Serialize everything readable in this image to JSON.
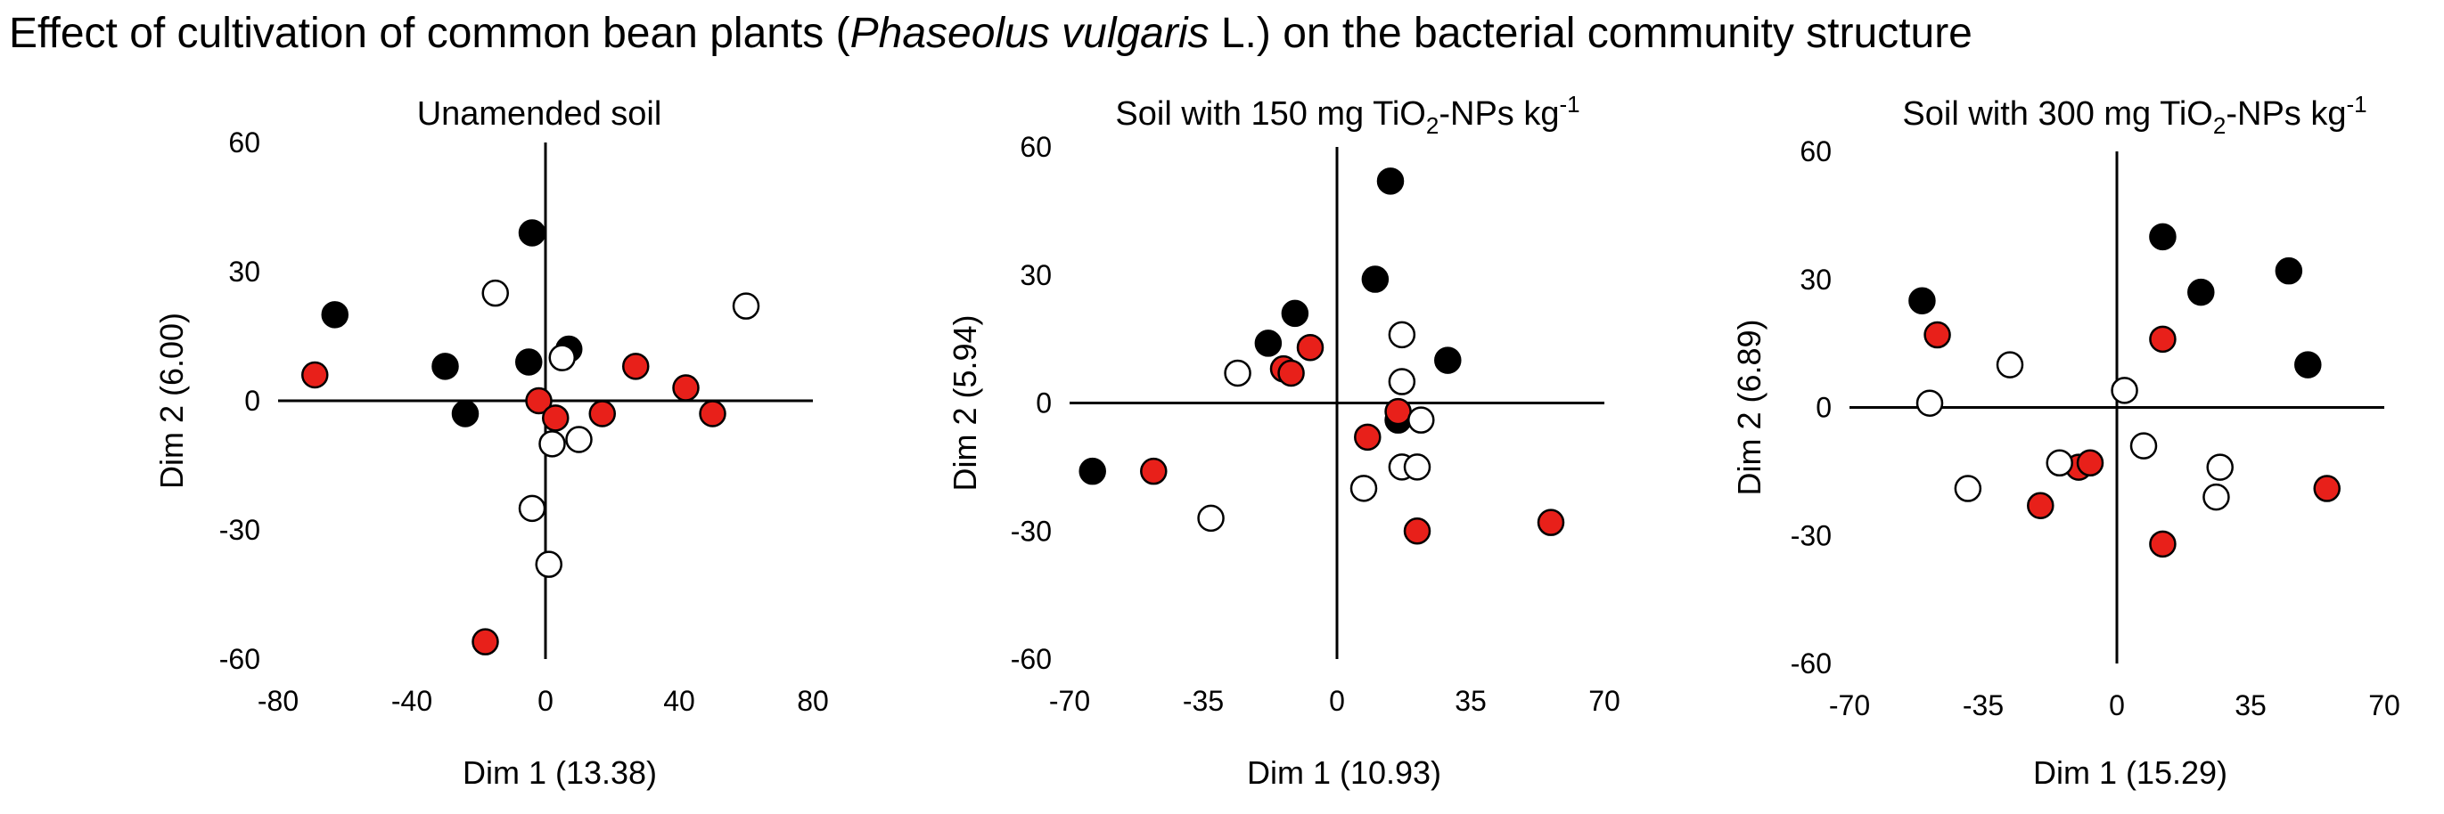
{
  "title": {
    "prefix": "Effect of cultivation of common bean plants (",
    "species": "Phaseolus vulgaris",
    "suffix": " L.) on the bacterial community structure"
  },
  "legend_colors": {
    "black": "#000000",
    "red": "#e8201a",
    "white": "#ffffff"
  },
  "chart_data": [
    {
      "type": "scatter",
      "title": "Unamended soil",
      "xlabel": "Dim 1 (13.38)",
      "ylabel": "Dim 2 (6.00)",
      "xlim": [
        -80,
        80
      ],
      "ylim": [
        -60,
        60
      ],
      "xticks": [
        -80,
        -40,
        0,
        40,
        80
      ],
      "yticks": [
        -60,
        -30,
        0,
        30,
        60
      ],
      "series": [
        {
          "name": "black",
          "color": "#000000",
          "x": [
            -63,
            -30,
            -24,
            -5,
            -4,
            7
          ],
          "y": [
            20,
            8,
            -3,
            9,
            39,
            12
          ]
        },
        {
          "name": "red",
          "color": "#e8201a",
          "x": [
            -69,
            -2,
            3,
            17,
            27,
            42,
            50,
            -18
          ],
          "y": [
            6,
            0,
            -4,
            -3,
            8,
            3,
            -3,
            -56
          ]
        },
        {
          "name": "white",
          "color": "#ffffff",
          "x": [
            -15,
            60,
            5,
            2,
            10,
            -4,
            1
          ],
          "y": [
            25,
            22,
            10,
            -10,
            -9,
            -25,
            -38
          ]
        }
      ]
    },
    {
      "type": "scatter",
      "title": "Soil with 150 mg TiO2-NPs kg-1",
      "title_parts": {
        "a": "Soil with 150 mg TiO",
        "sub": "2",
        "b": "-NPs kg",
        "sup": "-1"
      },
      "xlabel": "Dim 1 (10.93)",
      "ylabel": "Dim 2 (5.94)",
      "xlim": [
        -70,
        70
      ],
      "ylim": [
        -60,
        60
      ],
      "xticks": [
        -70,
        -35,
        0,
        35,
        70
      ],
      "yticks": [
        -60,
        -30,
        0,
        30,
        60
      ],
      "series": [
        {
          "name": "black",
          "color": "#000000",
          "x": [
            14,
            10,
            -11,
            -18,
            29,
            16,
            -64
          ],
          "y": [
            52,
            29,
            21,
            14,
            10,
            -4,
            -16
          ]
        },
        {
          "name": "red",
          "color": "#e8201a",
          "x": [
            -7,
            -14,
            -12,
            16,
            8,
            -48,
            21,
            56
          ],
          "y": [
            13,
            8,
            7,
            -2,
            -8,
            -16,
            -30,
            -28
          ]
        },
        {
          "name": "white",
          "color": "#ffffff",
          "x": [
            17,
            -26,
            17,
            22,
            17,
            21,
            7,
            -33
          ],
          "y": [
            16,
            7,
            5,
            -4,
            -15,
            -15,
            -20,
            -27
          ]
        }
      ]
    },
    {
      "type": "scatter",
      "title": "Soil with 300 mg TiO2-NPs  kg-1",
      "title_parts": {
        "a": "Soil with 300 mg TiO",
        "sub": "2",
        "b": "-NPs  kg",
        "sup": "-1"
      },
      "xlabel": "Dim 1 (15.29)",
      "ylabel": "Dim 2 (6.89)",
      "xlim": [
        -70,
        70
      ],
      "ylim": [
        -60,
        60
      ],
      "xticks": [
        -70,
        -35,
        0,
        35,
        70
      ],
      "yticks": [
        -60,
        -30,
        0,
        30,
        60
      ],
      "series": [
        {
          "name": "black",
          "color": "#000000",
          "x": [
            -51,
            12,
            22,
            45,
            50
          ],
          "y": [
            25,
            40,
            27,
            32,
            10
          ]
        },
        {
          "name": "red",
          "color": "#e8201a",
          "x": [
            -47,
            12,
            -20,
            -10,
            -7,
            12,
            55
          ],
          "y": [
            17,
            16,
            -23,
            -14,
            -13,
            -32,
            -19
          ]
        },
        {
          "name": "white",
          "color": "#ffffff",
          "x": [
            -49,
            -28,
            -39,
            -15,
            2,
            7,
            27,
            26
          ],
          "y": [
            1,
            10,
            -19,
            -13,
            4,
            -9,
            -14,
            -21
          ]
        }
      ]
    }
  ]
}
